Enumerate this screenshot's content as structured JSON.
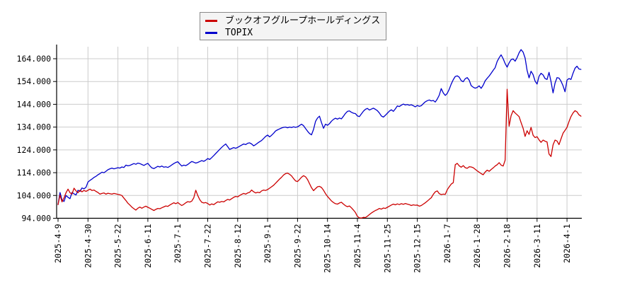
{
  "legend": {
    "items": [
      {
        "label": "ブックオフグループホールディングス",
        "color": "#cc0000"
      },
      {
        "label": "TOPIX",
        "color": "#0000cc"
      }
    ]
  },
  "chart_data": {
    "type": "line",
    "title": "",
    "xlabel": "",
    "ylabel": "",
    "grid": true,
    "legend_position": "top-center",
    "y_tick_labels": [
      "164.000",
      "154.000",
      "144.000",
      "134.000",
      "124.000",
      "114.000",
      "104.000",
      "94.000"
    ],
    "y_ticks": [
      164,
      154,
      144,
      134,
      124,
      114,
      104,
      94
    ],
    "ylim": [
      94,
      170
    ],
    "x_tick_labels": [
      "2025-4-9",
      "2025-4-30",
      "2025-5-22",
      "2025-6-11",
      "2025-7-1",
      "2025-7-22",
      "2025-8-12",
      "2025-9-1",
      "2025-9-22",
      "2025-10-14",
      "2025-11-4",
      "2025-11-25",
      "2025-12-15",
      "2026-1-7",
      "2026-1-28",
      "2026-2-18",
      "2026-3-11",
      "2026-4-1"
    ],
    "x_tick_interval_trading_days": 15,
    "x_unit": "trading-day index from 2025-4-9",
    "series": [
      {
        "name": "ブックオフグループホールディングス",
        "color": "#cc0000",
        "values": [
          100.0,
          104.2,
          101.2,
          103.0,
          105.2,
          106.8,
          105.2,
          104.6,
          107.2,
          106.0,
          105.2,
          106.3,
          105.6,
          106.2,
          105.8,
          106.3,
          106.8,
          106.2,
          106.4,
          105.8,
          105.3,
          104.6,
          104.9,
          105.1,
          104.6,
          105.0,
          104.8,
          104.6,
          104.9,
          104.7,
          104.5,
          104.3,
          104.0,
          102.8,
          101.8,
          100.6,
          99.8,
          98.9,
          98.2,
          97.6,
          98.4,
          98.9,
          98.4,
          98.9,
          99.3,
          98.8,
          98.4,
          97.9,
          97.4,
          97.9,
          98.3,
          98.2,
          98.6,
          99.0,
          99.4,
          99.2,
          99.8,
          100.3,
          100.8,
          100.4,
          100.9,
          100.2,
          99.6,
          100.1,
          100.8,
          101.3,
          101.1,
          101.5,
          103.0,
          106.3,
          104.0,
          102.2,
          101.0,
          100.7,
          100.9,
          100.5,
          99.8,
          100.3,
          100.0,
          100.6,
          101.2,
          101.0,
          101.4,
          101.2,
          101.8,
          102.3,
          102.0,
          102.6,
          103.2,
          103.6,
          103.4,
          104.0,
          104.5,
          104.9,
          104.6,
          105.1,
          105.4,
          106.4,
          105.6,
          105.1,
          105.4,
          105.2,
          106.0,
          106.4,
          106.2,
          106.6,
          107.2,
          107.8,
          108.5,
          109.4,
          110.3,
          111.2,
          112.0,
          113.0,
          113.6,
          113.8,
          113.3,
          112.6,
          111.4,
          110.4,
          110.1,
          111.0,
          112.0,
          112.7,
          112.2,
          111.0,
          109.2,
          107.4,
          106.1,
          107.0,
          107.8,
          108.0,
          107.5,
          106.3,
          104.8,
          103.6,
          102.6,
          101.6,
          100.9,
          100.4,
          100.2,
          100.7,
          101.0,
          100.2,
          99.5,
          99.1,
          99.4,
          98.6,
          97.6,
          96.5,
          94.8,
          94.2,
          94.1,
          94.4,
          94.3,
          94.9,
          95.6,
          96.3,
          96.9,
          97.4,
          97.8,
          98.3,
          98.0,
          98.5,
          98.3,
          98.8,
          99.3,
          99.8,
          100.2,
          99.9,
          100.3,
          100.0,
          100.4,
          100.1,
          100.5,
          100.2,
          100.0,
          99.6,
          99.9,
          99.7,
          99.8,
          99.3,
          99.6,
          100.2,
          100.8,
          101.5,
          102.3,
          103.0,
          104.5,
          105.6,
          106.0,
          104.8,
          104.4,
          104.6,
          104.5,
          106.5,
          107.8,
          109.0,
          109.6,
          117.5,
          118.1,
          117.0,
          116.4,
          117.1,
          116.2,
          115.9,
          116.6,
          116.5,
          116.2,
          115.5,
          114.8,
          114.2,
          113.6,
          113.1,
          114.3,
          115.1,
          114.6,
          115.4,
          116.1,
          116.9,
          117.5,
          118.4,
          117.3,
          116.9,
          119.5,
          150.6,
          134.4,
          139.0,
          141.2,
          140.2,
          139.4,
          138.6,
          136.0,
          133.5,
          129.9,
          132.4,
          130.8,
          133.9,
          130.4,
          129.4,
          129.8,
          128.4,
          127.3,
          128.3,
          127.8,
          127.5,
          122.2,
          121.1,
          126.2,
          128.3,
          127.9,
          126.3,
          128.8,
          131.3,
          132.6,
          133.9,
          136.4,
          138.6,
          140.2,
          141.2,
          140.7,
          139.4,
          138.8
        ]
      },
      {
        "name": "TOPIX",
        "color": "#0000cc",
        "values": [
          100.0,
          105.3,
          102.0,
          101.4,
          104.0,
          103.2,
          102.6,
          105.3,
          104.7,
          104.2,
          106.3,
          105.8,
          107.3,
          106.9,
          107.6,
          109.9,
          110.6,
          111.2,
          111.9,
          112.4,
          113.1,
          113.6,
          114.2,
          114.0,
          114.6,
          115.3,
          115.7,
          116.0,
          115.7,
          115.9,
          116.2,
          116.0,
          116.5,
          116.3,
          117.3,
          117.0,
          117.2,
          117.6,
          118.0,
          117.7,
          118.2,
          118.0,
          117.6,
          117.2,
          117.7,
          118.1,
          117.0,
          116.1,
          115.8,
          116.3,
          116.8,
          116.5,
          116.9,
          116.4,
          116.6,
          116.3,
          116.8,
          117.4,
          118.0,
          118.5,
          118.8,
          117.8,
          116.9,
          117.3,
          117.1,
          117.6,
          118.3,
          118.9,
          118.6,
          118.2,
          118.5,
          118.9,
          119.3,
          119.0,
          119.5,
          120.2,
          119.8,
          120.6,
          121.5,
          122.4,
          123.3,
          124.2,
          125.1,
          125.9,
          126.6,
          125.4,
          124.2,
          124.6,
          125.0,
          124.7,
          125.1,
          125.6,
          126.1,
          126.6,
          126.3,
          126.9,
          127.1,
          126.6,
          125.8,
          126.3,
          127.0,
          127.6,
          128.1,
          129.0,
          129.9,
          130.5,
          129.7,
          130.4,
          131.3,
          132.3,
          132.8,
          133.2,
          133.6,
          133.9,
          134.0,
          133.7,
          134.0,
          133.8,
          134.1,
          133.9,
          134.1,
          134.7,
          135.3,
          134.6,
          133.4,
          132.2,
          131.2,
          130.6,
          133.0,
          136.5,
          138.0,
          138.8,
          136.0,
          133.5,
          135.3,
          134.8,
          135.5,
          136.6,
          137.4,
          137.9,
          137.5,
          138.0,
          137.6,
          138.8,
          140.0,
          140.9,
          141.1,
          140.5,
          140.1,
          139.9,
          138.9,
          138.6,
          139.8,
          141.0,
          141.8,
          142.2,
          141.5,
          141.9,
          142.3,
          141.8,
          141.2,
          140.2,
          138.9,
          138.4,
          139.2,
          140.1,
          141.0,
          141.6,
          140.9,
          142.0,
          143.3,
          143.0,
          143.6,
          144.1,
          143.7,
          143.9,
          143.6,
          143.8,
          143.4,
          142.9,
          143.5,
          143.1,
          143.4,
          144.3,
          145.1,
          145.6,
          145.9,
          145.5,
          145.7,
          145.0,
          146.3,
          148.0,
          150.9,
          149.0,
          147.9,
          148.8,
          150.6,
          152.9,
          154.8,
          156.2,
          156.5,
          155.9,
          154.4,
          153.9,
          155.2,
          155.7,
          154.6,
          152.2,
          151.5,
          151.1,
          151.4,
          152.1,
          151.0,
          152.4,
          154.3,
          155.4,
          156.4,
          157.6,
          158.9,
          160.1,
          162.8,
          164.4,
          165.7,
          164.0,
          161.9,
          160.3,
          162.2,
          163.6,
          163.9,
          162.9,
          164.5,
          166.6,
          168.0,
          166.9,
          164.3,
          158.9,
          155.6,
          158.5,
          157.0,
          154.2,
          152.9,
          156.3,
          157.6,
          156.9,
          155.3,
          154.9,
          158.0,
          154.0,
          149.0,
          153.3,
          155.7,
          155.5,
          154.2,
          152.1,
          149.5,
          154.6,
          155.3,
          154.9,
          157.6,
          159.8,
          160.7,
          159.5,
          159.3
        ]
      }
    ]
  }
}
